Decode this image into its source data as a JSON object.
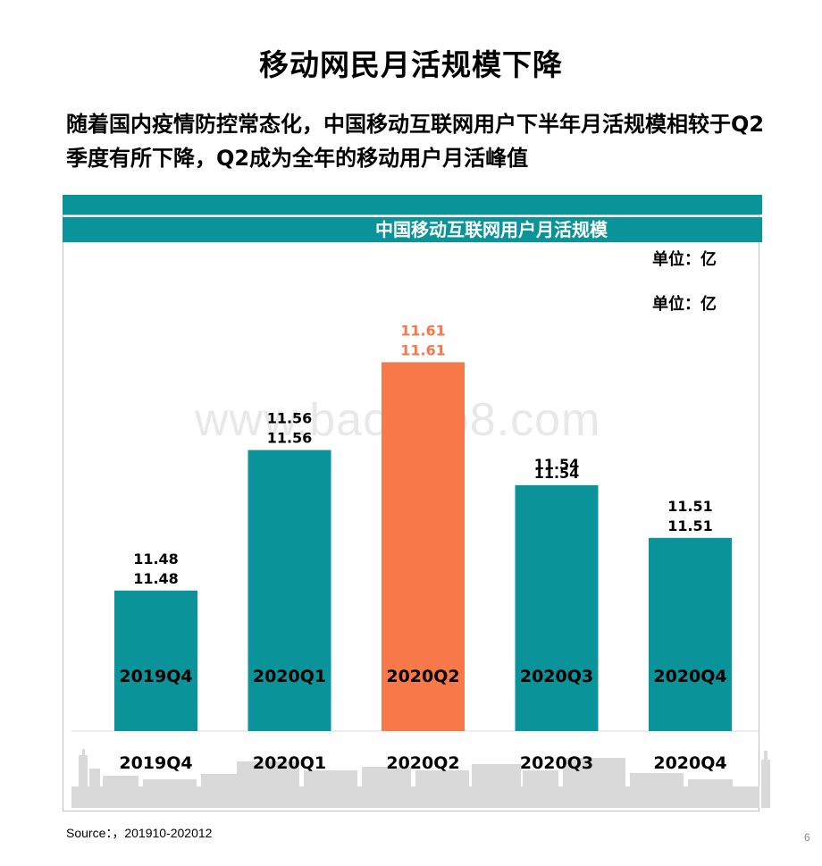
{
  "slide": {
    "title": "移动网民月活规模下降",
    "subtitle": "随着国内疫情防控常态化，中国移动互联网用户下半年月活规模相较于Q2季度有所下降，Q2成为全年的移动用户月活峰值",
    "watermark": "www.baogao8.com",
    "source": "Source：，201910-202012",
    "page_number": "6"
  },
  "chart_data": {
    "type": "bar",
    "title": "中国移动互联网用户月活规模",
    "unit_labels": [
      "单位：亿",
      "单位：亿"
    ],
    "categories": [
      "2019Q4",
      "2020Q1",
      "2020Q2",
      "2020Q3",
      "2020Q4"
    ],
    "values": [
      11.48,
      11.56,
      11.61,
      11.54,
      11.51
    ],
    "value_labels": [
      "11.48",
      "11.56",
      "11.61",
      "11.54",
      "11.51"
    ],
    "highlight_index": 2,
    "colors": {
      "bar": "#0a9398",
      "highlight": "#f7794a",
      "label": "#000000",
      "highlight_label": "#f7794a",
      "banner": "#0a9398"
    },
    "ylim": [
      11.4,
      11.63
    ],
    "grid": false,
    "legend": "none"
  }
}
